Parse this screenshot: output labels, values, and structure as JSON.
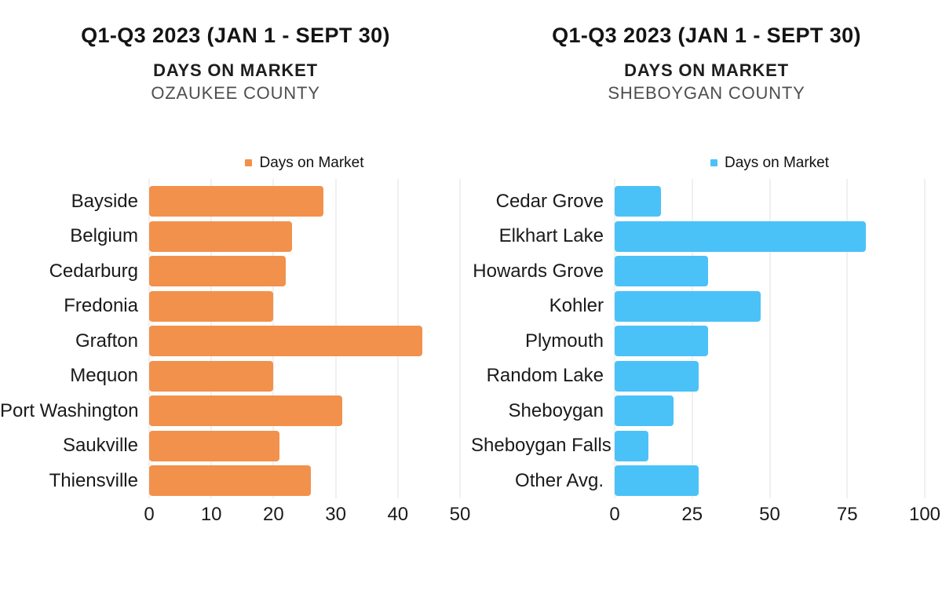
{
  "chart_data": [
    {
      "type": "bar",
      "orientation": "horizontal",
      "title": "Q1-Q3 2023 (JAN 1 - SEPT 30)",
      "subtitle": "DAYS ON MARKET",
      "county": "OZAUKEE COUNTY",
      "legend_label": "Days on Market",
      "legend_position": "top",
      "bar_color": "#F2914C",
      "grid": true,
      "categories": [
        "Bayside",
        "Belgium",
        "Cedarburg",
        "Fredonia",
        "Grafton",
        "Mequon",
        "Port Washington",
        "Saukville",
        "Thiensville"
      ],
      "values": [
        28,
        23,
        22,
        20,
        44,
        20,
        31,
        21,
        26
      ],
      "xlabel": "",
      "ylabel": "",
      "xlim": [
        0,
        50
      ],
      "xticks": [
        0,
        10,
        20,
        30,
        40,
        50
      ]
    },
    {
      "type": "bar",
      "orientation": "horizontal",
      "title": "Q1-Q3 2023 (JAN 1 - SEPT 30)",
      "subtitle": "DAYS ON MARKET",
      "county": "SHEBOYGAN COUNTY",
      "legend_label": "Days on Market",
      "legend_position": "top",
      "bar_color": "#4AC2F7",
      "grid": true,
      "categories": [
        "Cedar Grove",
        "Elkhart Lake",
        "Howards Grove",
        "Kohler",
        "Plymouth",
        "Random Lake",
        "Sheboygan",
        "Sheboygan Falls",
        "Other Avg."
      ],
      "values": [
        15,
        81,
        30,
        47,
        30,
        27,
        19,
        11,
        27
      ],
      "xlabel": "",
      "ylabel": "",
      "xlim": [
        0,
        100
      ],
      "xticks": [
        0,
        25,
        50,
        75,
        100
      ]
    }
  ]
}
